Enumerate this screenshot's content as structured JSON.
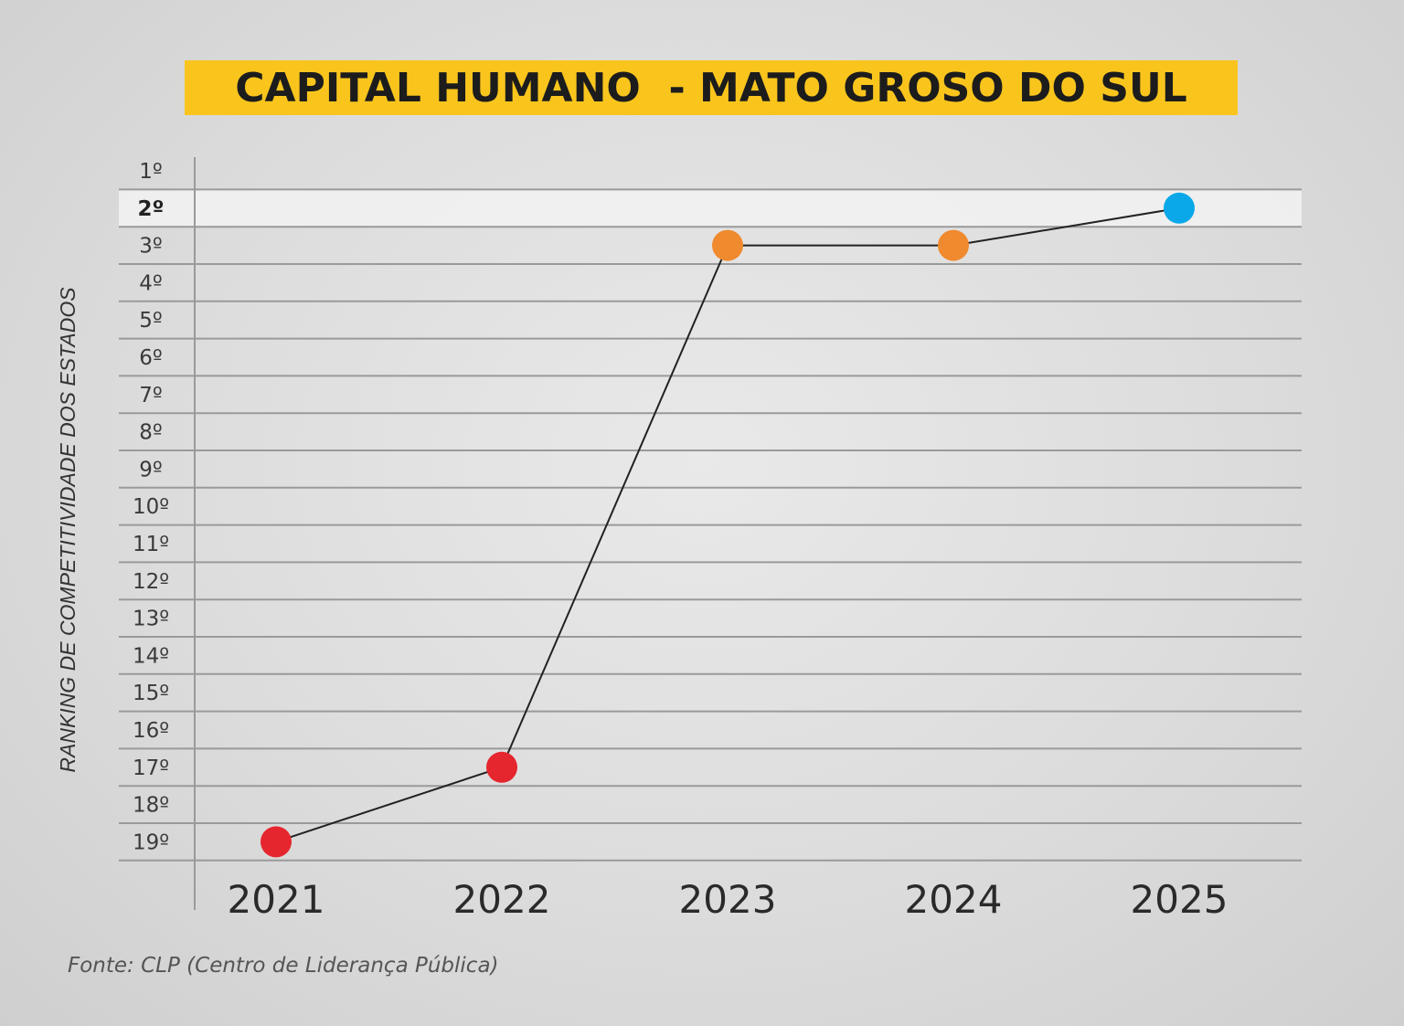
{
  "title": "CAPITAL HUMANO  - MATO GROSO DO SUL",
  "source": "Fonte: CLP (Centro de Liderança Pública)",
  "chart_data": {
    "type": "line",
    "title": "CAPITAL HUMANO  - MATO GROSO DO SUL",
    "ylabel": "RANKING DE COMPETITIVIDADE DOS ESTADOS",
    "xlabel": "",
    "categories": [
      "2021",
      "2022",
      "2023",
      "2024",
      "2025"
    ],
    "series": [
      {
        "values": [
          19,
          17,
          3,
          3,
          2
        ]
      }
    ],
    "point_colors": [
      "#e5262e",
      "#e5262e",
      "#f08a2e",
      "#f08a2e",
      "#0aa8e8"
    ],
    "y_ticks": [
      "1º",
      "2º",
      "3º",
      "4º",
      "5º",
      "6º",
      "7º",
      "8º",
      "9º",
      "10º",
      "11º",
      "12º",
      "13º",
      "14º",
      "15º",
      "16º",
      "17º",
      "18º",
      "19º"
    ],
    "highlighted_tick": "2º",
    "ylim": [
      1,
      19
    ],
    "y_inverted": true,
    "grid": true,
    "line_color": "#222222"
  }
}
